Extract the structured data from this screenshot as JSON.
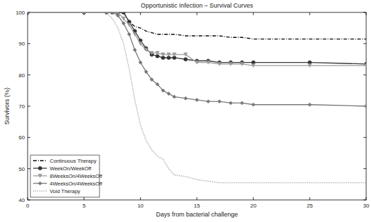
{
  "chart_data": {
    "type": "line",
    "title": "Opportunistic Infection – Survival Curves",
    "x_label": "Days from bacterial challenge",
    "y_label": "Survivors (%)",
    "x": [
      0,
      5,
      7,
      7.5,
      8,
      8.5,
      9,
      9.5,
      10,
      10.5,
      11,
      11.5,
      12,
      12.5,
      13,
      14,
      15,
      16,
      17,
      18,
      19,
      20,
      25,
      30
    ],
    "xlim": [
      0,
      30
    ],
    "xticks": [
      0,
      5,
      10,
      15,
      20,
      25,
      30
    ],
    "ylim": [
      40,
      100
    ],
    "yticks": [
      40,
      50,
      60,
      70,
      80,
      90,
      100
    ],
    "grid": false,
    "legend": "lower left",
    "series": [
      {
        "name": "Continuous Therapy",
        "color": "#000000",
        "line_style": "dashdot",
        "marker": "none",
        "values": [
          100,
          100,
          100,
          100,
          100,
          100,
          97,
          95.5,
          95,
          94,
          93.5,
          93,
          93,
          93,
          93,
          92.5,
          92.5,
          92.5,
          92.5,
          92,
          92,
          91.5,
          91.5,
          91.5
        ]
      },
      {
        "name": "WeekOn/WeekOff",
        "color": "#333333",
        "line_style": "solid",
        "marker": "circle",
        "values": [
          100,
          100,
          100,
          100,
          100,
          100,
          97,
          94,
          91,
          88.5,
          86.5,
          86,
          85.5,
          85.5,
          85.5,
          85,
          84.5,
          84.5,
          84,
          84,
          84,
          84,
          84,
          83.5
        ]
      },
      {
        "name": "8WeeksOn/4WeeksOff",
        "color": "#9a9a9a",
        "line_style": "solid",
        "marker": "triangle",
        "values": [
          100,
          100,
          100,
          100,
          100,
          98,
          96,
          93,
          90,
          88,
          87,
          87,
          86.5,
          86.5,
          86.5,
          86.5,
          84,
          84,
          83.5,
          83.5,
          83.5,
          83,
          83,
          83
        ]
      },
      {
        "name": "4WeeksOn/4WeeksOff",
        "color": "#777777",
        "line_style": "solid",
        "marker": "diamond",
        "values": [
          100,
          100,
          100,
          100,
          99,
          96.5,
          93,
          88,
          84,
          81,
          78.5,
          77,
          75,
          74,
          73,
          72.5,
          72,
          71.5,
          71.5,
          71,
          71,
          70.5,
          70.5,
          70
        ]
      },
      {
        "name": "Void Therapy",
        "color": "#a8a8a8",
        "line_style": "dotted",
        "marker": "none",
        "values": [
          100,
          100,
          100,
          98,
          95,
          90,
          82,
          72,
          64,
          59,
          56,
          54,
          53,
          50,
          48,
          47.5,
          46.5,
          46,
          45.5,
          45.5,
          45.5,
          45.5,
          45.5,
          45.5
        ]
      }
    ]
  }
}
